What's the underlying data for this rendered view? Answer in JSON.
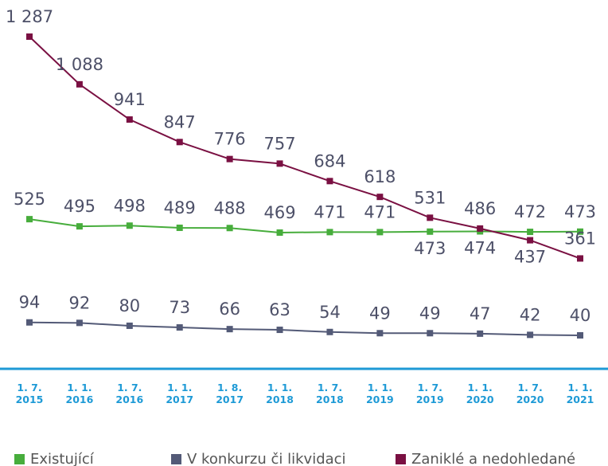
{
  "chart_data": {
    "type": "line",
    "categories": [
      "1. 7. 2015",
      "1. 1. 2016",
      "1. 7. 2016",
      "1. 1. 2017",
      "1. 8. 2017",
      "1. 1. 2018",
      "1. 7. 2018",
      "1. 1. 2019",
      "1. 7. 2019",
      "1. 1. 2020",
      "1. 7. 2020",
      "1. 1. 2021"
    ],
    "ylim": [
      0,
      1440
    ],
    "series": [
      {
        "name": "Existující",
        "color": "#47ad3c",
        "values": [
          525,
          495,
          498,
          489,
          488,
          469,
          471,
          471,
          473,
          474,
          472,
          473
        ]
      },
      {
        "name": "V konkurzu či likvidaci",
        "color": "#535a77",
        "values": [
          94,
          92,
          80,
          73,
          66,
          63,
          54,
          49,
          49,
          47,
          42,
          40
        ]
      },
      {
        "name": "Zaniklé a nedohledané",
        "color": "#7a1042",
        "values": [
          1287,
          1088,
          941,
          847,
          776,
          757,
          684,
          618,
          531,
          486,
          437,
          361
        ],
        "value_labels": [
          "1 287",
          "1 088",
          "941",
          "847",
          "776",
          "757",
          "684",
          "618",
          "531",
          "486",
          "437",
          "361"
        ]
      }
    ]
  }
}
